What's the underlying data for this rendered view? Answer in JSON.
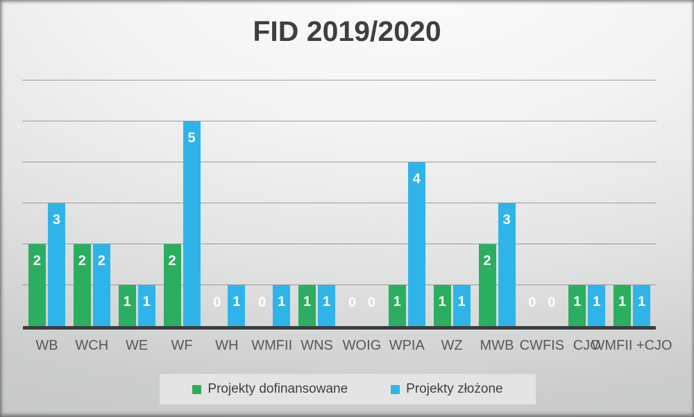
{
  "title": "FID 2019/2020",
  "chart_data": {
    "type": "bar",
    "title": "FID 2019/2020",
    "categories": [
      "WB",
      "WCH",
      "WE",
      "WF",
      "WH",
      "WMFII",
      "WNS",
      "WOIG",
      "WPIA",
      "WZ",
      "MWB",
      "CWFIS",
      "CJO",
      "WMFII +CJO"
    ],
    "series": [
      {
        "name": "Projekty dofinansowane",
        "color": "#2bae60",
        "values": [
          2,
          2,
          1,
          2,
          0,
          0,
          1,
          0,
          1,
          1,
          2,
          0,
          1,
          1
        ]
      },
      {
        "name": "Projekty złożone",
        "color": "#2fb4e9",
        "values": [
          3,
          2,
          1,
          5,
          1,
          1,
          1,
          0,
          4,
          1,
          3,
          0,
          1,
          1
        ]
      }
    ],
    "ylim": [
      0,
      6
    ],
    "gridlines": "horizontal every 1 unit, no y-axis tick labels",
    "legend_position": "bottom",
    "data_labels": "inside-end, white bold",
    "axis_color": "#3a3c3d",
    "gridline_color": "#808080",
    "title_color": "#3f3f3f",
    "x_label_color": "#565759"
  }
}
